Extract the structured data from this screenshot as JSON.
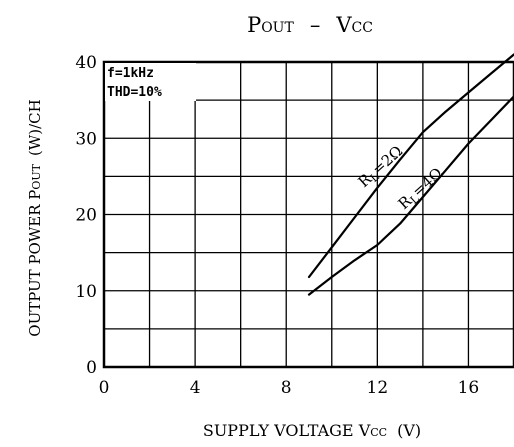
{
  "chart_data": {
    "type": "line",
    "title_main": "P",
    "title_main_sub": "OUT",
    "title_dash": "–",
    "title_v": "V",
    "title_v_sub": "CC",
    "xlabel_prefix": "SUPPLY VOLTAGE V",
    "xlabel_sub": "CC",
    "xlabel_suffix": "(V)",
    "ylabel_prefix": "OUTPUT POWER P",
    "ylabel_sub": "OUT",
    "ylabel_suffix": "(W)/CH",
    "xlim": [
      0,
      18
    ],
    "ylim": [
      0,
      40
    ],
    "x_ticks": [
      "0",
      "4",
      "8",
      "12",
      "16"
    ],
    "y_ticks": [
      "0",
      "10",
      "20",
      "30",
      "40"
    ],
    "x_tick_values": [
      0,
      4,
      8,
      12,
      16
    ],
    "y_tick_values": [
      0,
      10,
      20,
      30,
      40
    ],
    "grid": true,
    "legend_text": [
      "f=1kHz",
      "THD=10%"
    ],
    "series": [
      {
        "name": "RL=2Ω",
        "label_main": "R",
        "label_sub": "L",
        "label_rest": "=2Ω",
        "x": [
          9.0,
          10.0,
          11.0,
          12.0,
          13.0,
          14.0,
          15.0,
          16.0,
          17.0,
          18.0
        ],
        "y": [
          11.8,
          15.7,
          19.6,
          23.5,
          27.2,
          30.8,
          33.5,
          36.0,
          38.5,
          41.0
        ]
      },
      {
        "name": "RL=4Ω",
        "label_main": "R",
        "label_sub": "L",
        "label_rest": "=4Ω",
        "x": [
          9.0,
          10.0,
          11.0,
          12.0,
          13.0,
          14.0,
          15.0,
          16.0,
          17.0,
          18.0
        ],
        "y": [
          9.5,
          11.8,
          14.0,
          16.0,
          18.8,
          22.3,
          25.8,
          29.3,
          32.4,
          35.5
        ]
      }
    ]
  }
}
